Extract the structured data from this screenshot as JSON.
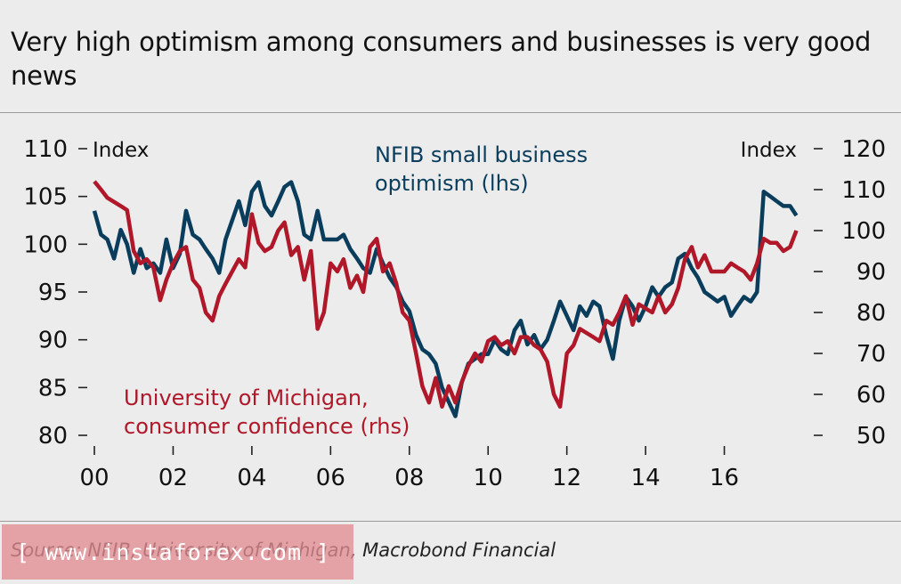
{
  "title": "Very high optimism among consumers and businesses is very good news",
  "source": "Source: NFIB, University of Michigan, Macrobond Financial",
  "watermark": "[ www.instaforex.com ]",
  "colors": {
    "nfib": "#0a3d5c",
    "umich": "#b0182a",
    "text": "#111111",
    "background": "#ececec"
  },
  "chart_data": {
    "type": "line",
    "title": "Very high optimism among consumers and businesses is very good news",
    "left_axis": {
      "label": "Index",
      "ylim": [
        80,
        110
      ],
      "ticks": [
        110,
        105,
        100,
        95,
        90,
        85,
        80
      ],
      "tick_labels": [
        "110",
        "105",
        "100",
        "95",
        "90",
        "85",
        "80"
      ]
    },
    "right_axis": {
      "label": "Index",
      "ylim": [
        50,
        120
      ],
      "ticks": [
        120,
        110,
        100,
        90,
        80,
        70,
        60,
        50
      ],
      "tick_labels": [
        "120",
        "110",
        "100",
        "90",
        "80",
        "70",
        "60",
        "50"
      ]
    },
    "x_axis": {
      "range": [
        2000,
        2018
      ],
      "ticks": [
        2000,
        2002,
        2004,
        2006,
        2008,
        2010,
        2012,
        2014,
        2016
      ],
      "tick_labels": [
        "00",
        "02",
        "04",
        "06",
        "08",
        "10",
        "12",
        "14",
        "16"
      ]
    },
    "series": [
      {
        "name": "NFIB small business optimism (lhs)",
        "label_lines": [
          "NFIB small business",
          "optimism (lhs)"
        ],
        "axis": "left",
        "x": [
          2000.0,
          2000.17,
          2000.33,
          2000.5,
          2000.67,
          2000.83,
          2001.0,
          2001.17,
          2001.33,
          2001.5,
          2001.67,
          2001.83,
          2002.0,
          2002.17,
          2002.33,
          2002.5,
          2002.67,
          2002.83,
          2003.0,
          2003.17,
          2003.33,
          2003.5,
          2003.67,
          2003.83,
          2004.0,
          2004.17,
          2004.33,
          2004.5,
          2004.67,
          2004.83,
          2005.0,
          2005.17,
          2005.33,
          2005.5,
          2005.67,
          2005.83,
          2006.0,
          2006.17,
          2006.33,
          2006.5,
          2006.67,
          2006.83,
          2007.0,
          2007.17,
          2007.33,
          2007.5,
          2007.67,
          2007.83,
          2008.0,
          2008.17,
          2008.33,
          2008.5,
          2008.67,
          2008.83,
          2009.0,
          2009.17,
          2009.33,
          2009.5,
          2009.67,
          2009.83,
          2010.0,
          2010.17,
          2010.33,
          2010.5,
          2010.67,
          2010.83,
          2011.0,
          2011.17,
          2011.33,
          2011.5,
          2011.67,
          2011.83,
          2012.0,
          2012.17,
          2012.33,
          2012.5,
          2012.67,
          2012.83,
          2013.0,
          2013.17,
          2013.33,
          2013.5,
          2013.67,
          2013.83,
          2014.0,
          2014.17,
          2014.33,
          2014.5,
          2014.67,
          2014.83,
          2015.0,
          2015.17,
          2015.33,
          2015.5,
          2015.67,
          2015.83,
          2016.0,
          2016.17,
          2016.33,
          2016.5,
          2016.67,
          2016.83,
          2017.0,
          2017.17,
          2017.33,
          2017.5,
          2017.67,
          2017.83
        ],
        "values": [
          103.5,
          101.0,
          100.5,
          98.5,
          101.5,
          100.0,
          97.0,
          99.5,
          97.5,
          98.0,
          97.0,
          100.5,
          97.5,
          99.0,
          103.5,
          101.0,
          100.5,
          99.5,
          98.5,
          97.0,
          100.5,
          102.5,
          104.5,
          102.0,
          105.5,
          106.5,
          104.0,
          103.0,
          104.5,
          106.0,
          106.5,
          104.5,
          101.0,
          100.5,
          103.5,
          100.5,
          100.5,
          100.5,
          101.0,
          99.5,
          98.5,
          97.5,
          97.0,
          99.5,
          98.0,
          96.5,
          95.5,
          94.0,
          93.0,
          90.5,
          89.0,
          88.5,
          87.5,
          85.0,
          83.5,
          82.0,
          85.5,
          87.5,
          88.0,
          88.5,
          88.5,
          90.0,
          89.0,
          88.5,
          91.0,
          92.0,
          89.5,
          90.5,
          89.0,
          90.0,
          92.0,
          94.0,
          92.5,
          91.0,
          93.5,
          92.5,
          94.0,
          93.5,
          90.5,
          88.0,
          92.0,
          94.5,
          93.5,
          92.0,
          93.5,
          95.5,
          94.5,
          95.5,
          96.0,
          98.5,
          99.0,
          97.5,
          96.5,
          95.0,
          94.5,
          94.0,
          94.5,
          92.5,
          93.5,
          94.5,
          94.0,
          95.0,
          105.5,
          105.0,
          104.5,
          104.0,
          104.0,
          103.0
        ]
      },
      {
        "name": "University of Michigan, consumer confidence (rhs)",
        "label_lines": [
          "University of Michigan,",
          "consumer confidence (rhs)"
        ],
        "axis": "right",
        "x": [
          2000.0,
          2000.17,
          2000.33,
          2000.5,
          2000.67,
          2000.83,
          2001.0,
          2001.17,
          2001.33,
          2001.5,
          2001.67,
          2001.83,
          2002.0,
          2002.17,
          2002.33,
          2002.5,
          2002.67,
          2002.83,
          2003.0,
          2003.17,
          2003.33,
          2003.5,
          2003.67,
          2003.83,
          2004.0,
          2004.17,
          2004.33,
          2004.5,
          2004.67,
          2004.83,
          2005.0,
          2005.17,
          2005.33,
          2005.5,
          2005.67,
          2005.83,
          2006.0,
          2006.17,
          2006.33,
          2006.5,
          2006.67,
          2006.83,
          2007.0,
          2007.17,
          2007.33,
          2007.5,
          2007.67,
          2007.83,
          2008.0,
          2008.17,
          2008.33,
          2008.5,
          2008.67,
          2008.83,
          2009.0,
          2009.17,
          2009.33,
          2009.5,
          2009.67,
          2009.83,
          2010.0,
          2010.17,
          2010.33,
          2010.5,
          2010.67,
          2010.83,
          2011.0,
          2011.17,
          2011.33,
          2011.5,
          2011.67,
          2011.83,
          2012.0,
          2012.17,
          2012.33,
          2012.5,
          2012.67,
          2012.83,
          2013.0,
          2013.17,
          2013.33,
          2013.5,
          2013.67,
          2013.83,
          2014.0,
          2014.17,
          2014.33,
          2014.5,
          2014.67,
          2014.83,
          2015.0,
          2015.17,
          2015.33,
          2015.5,
          2015.67,
          2015.83,
          2016.0,
          2016.17,
          2016.33,
          2016.5,
          2016.67,
          2016.83,
          2017.0,
          2017.17,
          2017.33,
          2017.5,
          2017.67,
          2017.83
        ],
        "values": [
          112,
          110,
          108,
          107,
          106,
          105,
          95,
          92,
          93,
          91,
          83,
          88,
          92,
          95,
          96,
          88,
          86,
          80,
          78,
          84,
          87,
          90,
          93,
          91,
          104,
          97,
          95,
          96,
          100,
          102,
          94,
          96,
          88,
          95,
          76,
          80,
          92,
          90,
          93,
          86,
          89,
          85,
          96,
          98,
          90,
          92,
          87,
          80,
          78,
          70,
          62,
          58,
          64,
          57,
          62,
          58,
          63,
          67,
          70,
          68,
          73,
          74,
          72,
          73,
          70,
          74,
          74,
          72,
          71,
          68,
          60,
          57,
          70,
          72,
          76,
          75,
          74,
          73,
          78,
          77,
          80,
          84,
          77,
          82,
          81,
          80,
          84,
          80,
          82,
          86,
          93,
          96,
          91,
          94,
          90,
          90,
          90,
          92,
          91,
          90,
          88,
          92,
          98,
          97,
          97,
          95,
          96,
          100
        ]
      }
    ]
  }
}
